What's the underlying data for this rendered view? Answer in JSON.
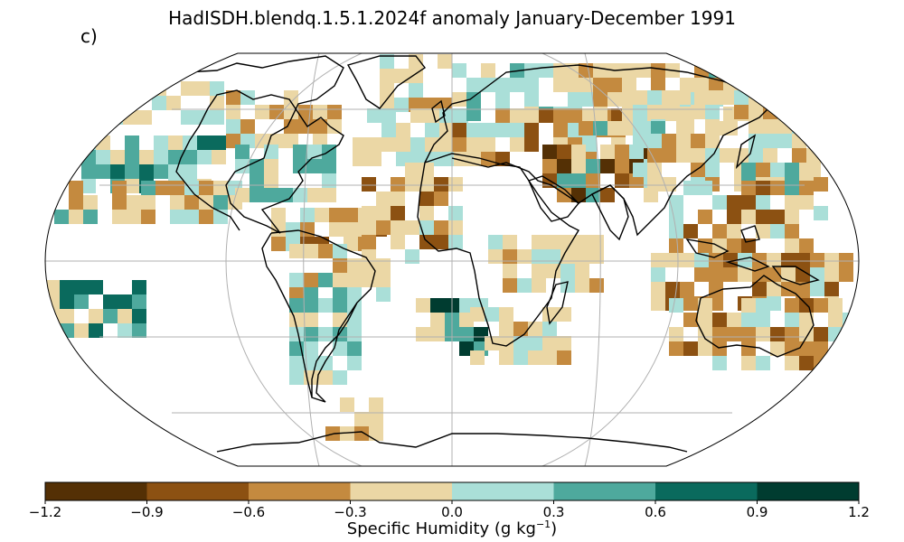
{
  "title": "HadISDH.blendq.1.5.1.2024f anomaly January-December 1991",
  "panel_label": "c)",
  "colorbar": {
    "label_main": "Specific Humidity (g kg",
    "label_sup": "−1",
    "label_close": ")",
    "ticks": [
      "−1.2",
      "−0.9",
      "−0.6",
      "−0.3",
      "0.0",
      "0.3",
      "0.6",
      "0.9",
      "1.2"
    ],
    "bins": [
      {
        "from": -1.2,
        "to": -0.9,
        "color": "#543005"
      },
      {
        "from": -0.9,
        "to": -0.6,
        "color": "#8c5112"
      },
      {
        "from": -0.6,
        "to": -0.3,
        "color": "#c48a3f"
      },
      {
        "from": -0.3,
        "to": 0.0,
        "color": "#ebd7a5"
      },
      {
        "from": 0.0,
        "to": 0.3,
        "color": "#aadfd8"
      },
      {
        "from": 0.3,
        "to": 0.6,
        "color": "#4ea99d"
      },
      {
        "from": 0.6,
        "to": 0.9,
        "color": "#0a6a5d"
      },
      {
        "from": 0.9,
        "to": 1.2,
        "color": "#003c30"
      }
    ]
  },
  "map": {
    "projection": "Robinson",
    "gridlines": true,
    "coastlines": true
  }
}
